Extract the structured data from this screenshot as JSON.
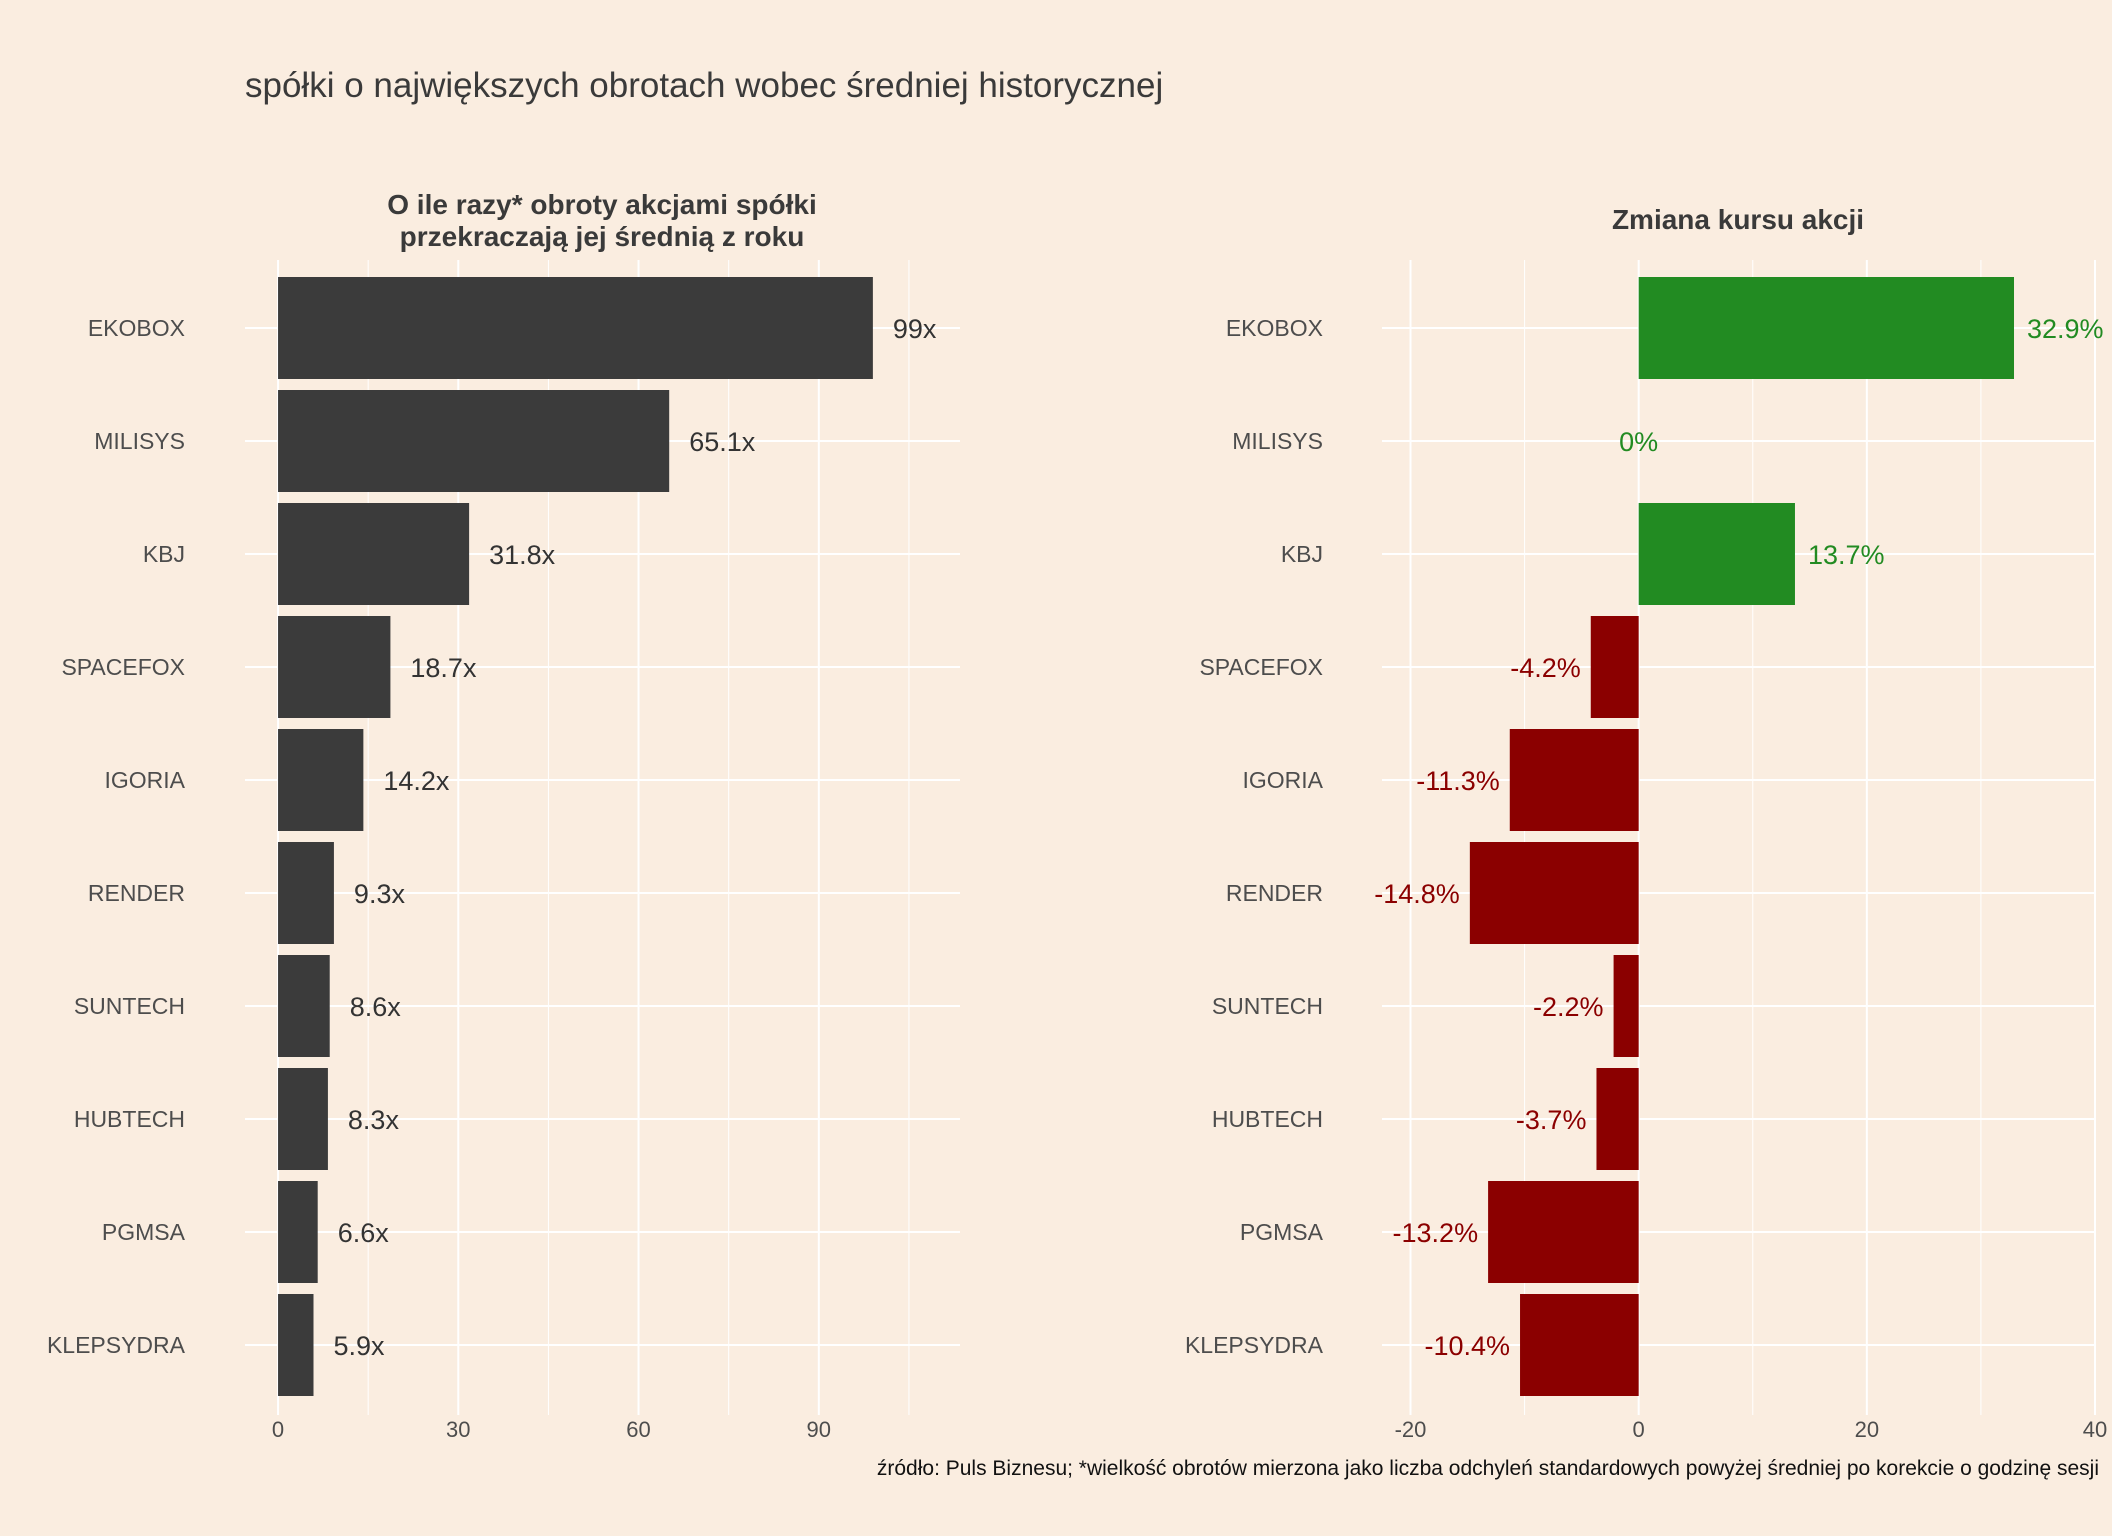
{
  "title": "spółki o największych obrotach wobec średniej historycznej",
  "caption": "źródło: Puls Biznesu; *wielkość obrotów mierzona jako liczba odchyleń standardowych powyżej średniej po korekcie o godzinę sesji",
  "colors": {
    "background": "#FAEDE0",
    "bar_dark": "#3B3B3B",
    "positive": "#228B22",
    "negative": "#8B0000",
    "grid": "#FFFFFF"
  },
  "chart_data": [
    {
      "type": "bar",
      "orientation": "horizontal",
      "title_lines": [
        "O ile razy* obroty akcjami spółki",
        "przekraczają jej średnią z roku"
      ],
      "categories": [
        "EKOBOX",
        "MILISYS",
        "KBJ",
        "SPACEFOX",
        "IGORIA",
        "RENDER",
        "SUNTECH",
        "HUBTECH",
        "PGMSA",
        "KLEPSYDRA"
      ],
      "values": [
        99,
        65.1,
        31.8,
        18.7,
        14.2,
        9.3,
        8.6,
        8.3,
        6.6,
        5.9
      ],
      "labels": [
        "99x",
        "65.1x",
        "31.8x",
        "18.7x",
        "14.2x",
        "9.3x",
        "8.6x",
        "8.3x",
        "6.6x",
        "5.9x"
      ],
      "xlim": [
        -5.5,
        113.5
      ],
      "xticks": [
        0,
        30,
        60,
        90
      ],
      "xtick_labels": [
        "0",
        "30",
        "60",
        "90"
      ],
      "grid": true
    },
    {
      "type": "bar",
      "orientation": "horizontal",
      "title_lines": [
        "Zmiana kursu akcji"
      ],
      "categories": [
        "EKOBOX",
        "MILISYS",
        "KBJ",
        "SPACEFOX",
        "IGORIA",
        "RENDER",
        "SUNTECH",
        "HUBTECH",
        "PGMSA",
        "KLEPSYDRA"
      ],
      "values": [
        32.9,
        0,
        13.7,
        -4.2,
        -11.3,
        -14.8,
        -2.2,
        -3.7,
        -13.2,
        -10.4
      ],
      "labels": [
        "32.9%",
        "0%",
        "13.7%",
        "-4.2%",
        "-11.3%",
        "-14.8%",
        "-2.2%",
        "-3.7%",
        "-13.2%",
        "-10.4%"
      ],
      "xlim": [
        -22.5,
        40
      ],
      "xticks": [
        -20,
        0,
        20,
        40
      ],
      "xtick_labels": [
        "-20",
        "0",
        "20",
        "40"
      ],
      "grid": true
    }
  ]
}
